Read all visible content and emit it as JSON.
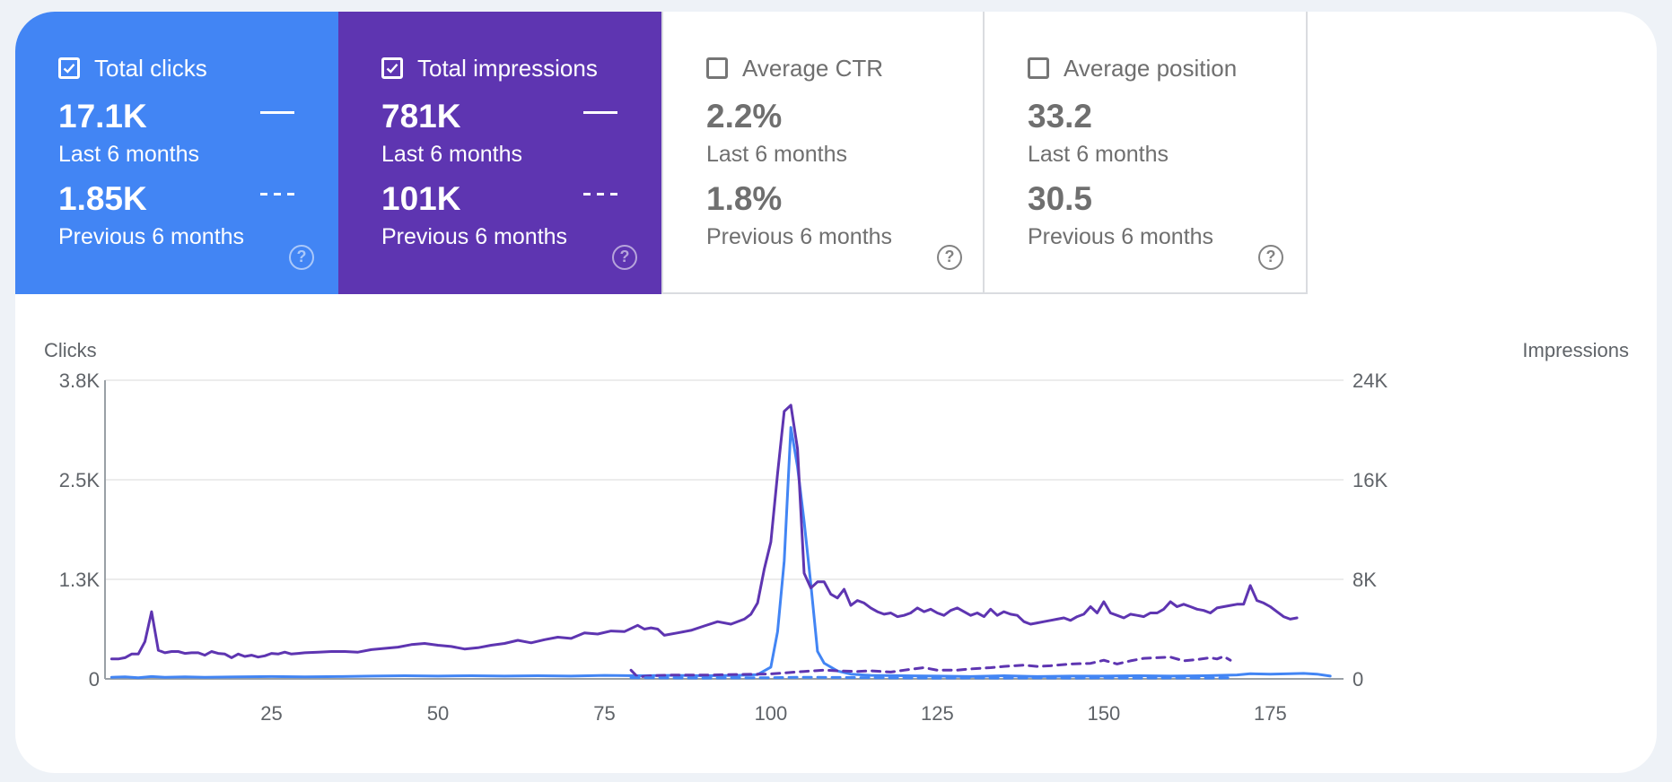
{
  "metrics": [
    {
      "title": "Total clicks",
      "checked": true,
      "value": "17.1K",
      "value_period": "Last 6 months",
      "prev_value": "1.85K",
      "prev_period": "Previous 6 months",
      "color": "#4285f4",
      "help": "?"
    },
    {
      "title": "Total impressions",
      "checked": true,
      "value": "781K",
      "value_period": "Last 6 months",
      "prev_value": "101K",
      "prev_period": "Previous 6 months",
      "color": "#5e35b1",
      "help": "?"
    },
    {
      "title": "Average CTR",
      "checked": false,
      "value": "2.2%",
      "value_period": "Last 6 months",
      "prev_value": "1.8%",
      "prev_period": "Previous 6 months",
      "help": "?"
    },
    {
      "title": "Average position",
      "checked": false,
      "value": "33.2",
      "value_period": "Last 6 months",
      "prev_value": "30.5",
      "prev_period": "Previous 6 months",
      "help": "?"
    }
  ],
  "chart_data": {
    "type": "line",
    "ylabel": "Clicks",
    "y2label": "Impressions",
    "ylim": [
      0,
      3800
    ],
    "y2lim": [
      0,
      24000
    ],
    "yticks": [
      "3.8K",
      "2.5K",
      "1.3K",
      "0"
    ],
    "y2ticks": [
      "24K",
      "16K",
      "8K",
      "0"
    ],
    "xticks": [
      25,
      50,
      75,
      100,
      125,
      150,
      175
    ],
    "xlim": [
      0,
      186
    ],
    "grid": true,
    "series": [
      {
        "axis": "left",
        "style": "solid",
        "color": "#4285f4",
        "points": [
          [
            1,
            20
          ],
          [
            3,
            25
          ],
          [
            5,
            15
          ],
          [
            7,
            30
          ],
          [
            9,
            20
          ],
          [
            12,
            25
          ],
          [
            15,
            20
          ],
          [
            20,
            25
          ],
          [
            25,
            30
          ],
          [
            30,
            25
          ],
          [
            35,
            30
          ],
          [
            40,
            35
          ],
          [
            45,
            40
          ],
          [
            50,
            35
          ],
          [
            55,
            40
          ],
          [
            60,
            35
          ],
          [
            65,
            40
          ],
          [
            70,
            35
          ],
          [
            75,
            45
          ],
          [
            80,
            40
          ],
          [
            85,
            45
          ],
          [
            90,
            40
          ],
          [
            95,
            45
          ],
          [
            98,
            55
          ],
          [
            100,
            150
          ],
          [
            101,
            600
          ],
          [
            102,
            1500
          ],
          [
            103,
            3200
          ],
          [
            104,
            2700
          ],
          [
            105,
            2000
          ],
          [
            106,
            1200
          ],
          [
            107,
            350
          ],
          [
            108,
            200
          ],
          [
            110,
            100
          ],
          [
            112,
            60
          ],
          [
            115,
            45
          ],
          [
            120,
            40
          ],
          [
            125,
            35
          ],
          [
            130,
            30
          ],
          [
            135,
            40
          ],
          [
            140,
            30
          ],
          [
            145,
            35
          ],
          [
            150,
            35
          ],
          [
            155,
            40
          ],
          [
            160,
            35
          ],
          [
            165,
            40
          ],
          [
            170,
            50
          ],
          [
            172,
            65
          ],
          [
            175,
            60
          ],
          [
            178,
            65
          ],
          [
            180,
            70
          ],
          [
            182,
            60
          ],
          [
            184,
            35
          ]
        ]
      },
      {
        "axis": "right",
        "style": "solid",
        "color": "#5e35b1",
        "points": [
          [
            1,
            1600
          ],
          [
            2,
            1600
          ],
          [
            3,
            1700
          ],
          [
            4,
            2000
          ],
          [
            5,
            2000
          ],
          [
            6,
            3000
          ],
          [
            7,
            5400
          ],
          [
            8,
            2300
          ],
          [
            9,
            2100
          ],
          [
            10,
            2200
          ],
          [
            11,
            2200
          ],
          [
            12,
            2050
          ],
          [
            13,
            2100
          ],
          [
            14,
            2100
          ],
          [
            15,
            1900
          ],
          [
            16,
            2200
          ],
          [
            17,
            2050
          ],
          [
            18,
            2000
          ],
          [
            19,
            1700
          ],
          [
            20,
            2000
          ],
          [
            21,
            1800
          ],
          [
            22,
            1900
          ],
          [
            23,
            1750
          ],
          [
            24,
            1850
          ],
          [
            25,
            2050
          ],
          [
            26,
            2000
          ],
          [
            27,
            2150
          ],
          [
            28,
            2000
          ],
          [
            29,
            2050
          ],
          [
            30,
            2100
          ],
          [
            32,
            2150
          ],
          [
            34,
            2200
          ],
          [
            36,
            2200
          ],
          [
            38,
            2150
          ],
          [
            40,
            2350
          ],
          [
            42,
            2450
          ],
          [
            44,
            2550
          ],
          [
            46,
            2750
          ],
          [
            48,
            2850
          ],
          [
            50,
            2700
          ],
          [
            52,
            2600
          ],
          [
            54,
            2400
          ],
          [
            56,
            2500
          ],
          [
            58,
            2700
          ],
          [
            60,
            2850
          ],
          [
            62,
            3100
          ],
          [
            64,
            2900
          ],
          [
            66,
            3150
          ],
          [
            68,
            3350
          ],
          [
            70,
            3250
          ],
          [
            72,
            3700
          ],
          [
            74,
            3600
          ],
          [
            76,
            3850
          ],
          [
            78,
            3800
          ],
          [
            80,
            4300
          ],
          [
            81,
            4000
          ],
          [
            82,
            4100
          ],
          [
            83,
            4000
          ],
          [
            84,
            3500
          ],
          [
            86,
            3700
          ],
          [
            88,
            3900
          ],
          [
            90,
            4250
          ],
          [
            92,
            4600
          ],
          [
            94,
            4400
          ],
          [
            96,
            4800
          ],
          [
            97,
            5200
          ],
          [
            98,
            6100
          ],
          [
            99,
            8800
          ],
          [
            100,
            11000
          ],
          [
            101,
            16500
          ],
          [
            102,
            21500
          ],
          [
            103,
            22000
          ],
          [
            104,
            18500
          ],
          [
            105,
            8500
          ],
          [
            106,
            7300
          ],
          [
            107,
            7800
          ],
          [
            108,
            7800
          ],
          [
            109,
            6800
          ],
          [
            110,
            6500
          ],
          [
            111,
            7200
          ],
          [
            112,
            5900
          ],
          [
            113,
            6300
          ],
          [
            114,
            6100
          ],
          [
            115,
            5700
          ],
          [
            116,
            5400
          ],
          [
            117,
            5200
          ],
          [
            118,
            5300
          ],
          [
            119,
            5000
          ],
          [
            120,
            5100
          ],
          [
            121,
            5300
          ],
          [
            122,
            5700
          ],
          [
            123,
            5400
          ],
          [
            124,
            5600
          ],
          [
            125,
            5300
          ],
          [
            126,
            5100
          ],
          [
            127,
            5500
          ],
          [
            128,
            5700
          ],
          [
            129,
            5400
          ],
          [
            130,
            5100
          ],
          [
            131,
            5300
          ],
          [
            132,
            5000
          ],
          [
            133,
            5600
          ],
          [
            134,
            5100
          ],
          [
            135,
            5400
          ],
          [
            136,
            5200
          ],
          [
            137,
            5100
          ],
          [
            138,
            4600
          ],
          [
            139,
            4400
          ],
          [
            140,
            4500
          ],
          [
            141,
            4600
          ],
          [
            142,
            4700
          ],
          [
            143,
            4800
          ],
          [
            144,
            4900
          ],
          [
            145,
            4700
          ],
          [
            146,
            5000
          ],
          [
            147,
            5200
          ],
          [
            148,
            5800
          ],
          [
            149,
            5300
          ],
          [
            150,
            6200
          ],
          [
            151,
            5300
          ],
          [
            152,
            5100
          ],
          [
            153,
            4900
          ],
          [
            154,
            5200
          ],
          [
            155,
            5100
          ],
          [
            156,
            5000
          ],
          [
            157,
            5300
          ],
          [
            158,
            5300
          ],
          [
            159,
            5600
          ],
          [
            160,
            6200
          ],
          [
            161,
            5800
          ],
          [
            162,
            6000
          ],
          [
            163,
            5800
          ],
          [
            164,
            5600
          ],
          [
            165,
            5500
          ],
          [
            166,
            5300
          ],
          [
            167,
            5700
          ],
          [
            168,
            5800
          ],
          [
            169,
            5900
          ],
          [
            170,
            6000
          ],
          [
            171,
            6000
          ],
          [
            172,
            7500
          ],
          [
            173,
            6300
          ],
          [
            174,
            6100
          ],
          [
            175,
            5800
          ],
          [
            176,
            5400
          ],
          [
            177,
            5000
          ],
          [
            178,
            4800
          ],
          [
            179,
            4900
          ]
        ]
      },
      {
        "axis": "right",
        "style": "dashed",
        "color": "#5e35b1",
        "points": [
          [
            79,
            700
          ],
          [
            80,
            150
          ],
          [
            82,
            250
          ],
          [
            85,
            300
          ],
          [
            90,
            300
          ],
          [
            95,
            350
          ],
          [
            100,
            400
          ],
          [
            105,
            600
          ],
          [
            108,
            700
          ],
          [
            110,
            650
          ],
          [
            113,
            600
          ],
          [
            115,
            650
          ],
          [
            118,
            550
          ],
          [
            120,
            700
          ],
          [
            123,
            900
          ],
          [
            125,
            700
          ],
          [
            128,
            700
          ],
          [
            130,
            800
          ],
          [
            133,
            900
          ],
          [
            135,
            1000
          ],
          [
            138,
            1100
          ],
          [
            140,
            1000
          ],
          [
            142,
            1050
          ],
          [
            145,
            1200
          ],
          [
            148,
            1250
          ],
          [
            150,
            1500
          ],
          [
            152,
            1200
          ],
          [
            154,
            1450
          ],
          [
            156,
            1650
          ],
          [
            158,
            1700
          ],
          [
            160,
            1750
          ],
          [
            162,
            1450
          ],
          [
            164,
            1550
          ],
          [
            166,
            1700
          ],
          [
            167,
            1600
          ],
          [
            168,
            1800
          ],
          [
            169,
            1500
          ]
        ]
      },
      {
        "axis": "left",
        "style": "dashed",
        "color": "#4285f4",
        "points": [
          [
            79,
            15
          ],
          [
            85,
            12
          ],
          [
            90,
            10
          ],
          [
            95,
            12
          ],
          [
            100,
            15
          ],
          [
            105,
            20
          ],
          [
            110,
            18
          ],
          [
            115,
            15
          ],
          [
            120,
            12
          ],
          [
            125,
            10
          ],
          [
            130,
            12
          ],
          [
            135,
            10
          ],
          [
            140,
            12
          ],
          [
            145,
            10
          ],
          [
            150,
            12
          ],
          [
            155,
            10
          ],
          [
            160,
            12
          ],
          [
            165,
            10
          ],
          [
            169,
            12
          ]
        ]
      }
    ]
  }
}
